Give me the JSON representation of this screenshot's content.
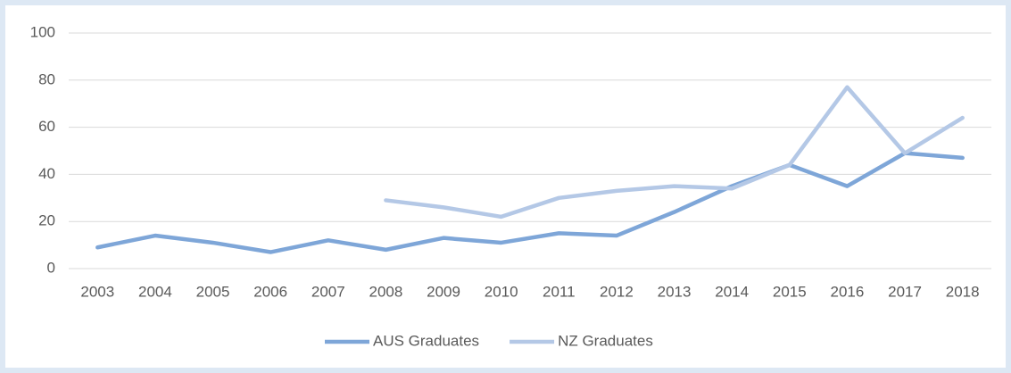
{
  "chart_data": {
    "type": "line",
    "categories": [
      "2003",
      "2004",
      "2005",
      "2006",
      "2007",
      "2008",
      "2009",
      "2010",
      "2011",
      "2012",
      "2013",
      "2014",
      "2015",
      "2016",
      "2017",
      "2018"
    ],
    "series": [
      {
        "name": "AUS Graduates",
        "color": "#7ea6d8",
        "values": [
          9,
          14,
          11,
          7,
          12,
          8,
          13,
          11,
          15,
          14,
          24,
          35,
          44,
          35,
          49,
          47
        ]
      },
      {
        "name": "NZ Graduates",
        "color": "#b4c8e6",
        "values": [
          null,
          null,
          null,
          null,
          null,
          29,
          26,
          22,
          30,
          33,
          35,
          34,
          44,
          77,
          49,
          64
        ]
      }
    ],
    "ylim": [
      0,
      100
    ],
    "yticks": [
      0,
      20,
      40,
      60,
      80,
      100
    ],
    "grid": true,
    "legend": "bottom"
  }
}
